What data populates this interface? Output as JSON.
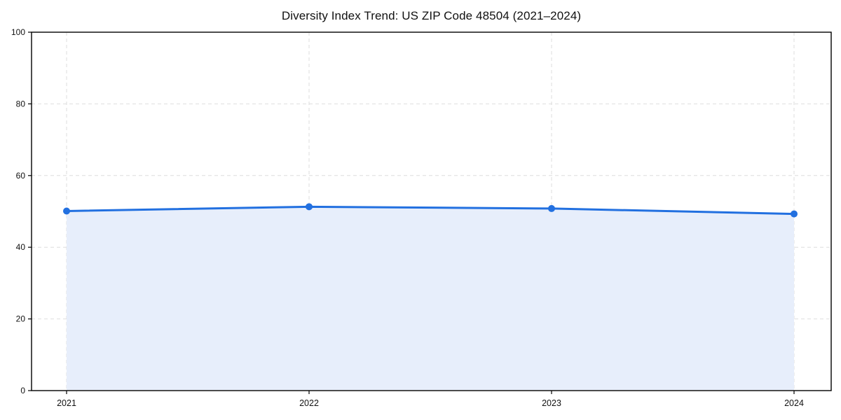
{
  "page": {
    "background": "#ffffff"
  },
  "chart_data": {
    "type": "area",
    "title": "Diversity Index Trend: US ZIP Code 48504 (2021–2024)",
    "x": [
      "2021",
      "2022",
      "2023",
      "2024"
    ],
    "series": [
      {
        "name": "Diversity Index",
        "values": [
          50.1,
          51.3,
          50.8,
          49.3
        ]
      }
    ],
    "xlabel": "",
    "ylabel": "",
    "ylim": [
      0,
      100
    ],
    "yticks": [
      0,
      20,
      40,
      60,
      80,
      100
    ],
    "grid": "dashed",
    "legend": "none",
    "marker": "circle",
    "colors": {
      "line": "#2270e0",
      "marker": "#2270e0",
      "area_fill": "#e7eefb",
      "grid": "#dedede",
      "axis": "#000000",
      "tick_text": "#111111"
    }
  }
}
